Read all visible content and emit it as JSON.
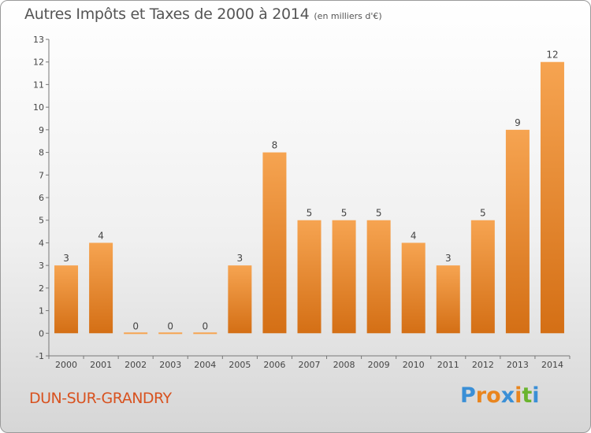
{
  "title": "Autres Impôts et Taxes de 2000 à 2014",
  "unit": "(en milliers d'€)",
  "commune": "DUN-SUR-GRANDRY",
  "logo": {
    "text": "Proxiti",
    "colors": [
      "#3a8fd6",
      "#e9851e",
      "#e9851e",
      "#3a8fd6",
      "#e9851e",
      "#6ab42e",
      "#3a8fd6"
    ]
  },
  "colors": {
    "bar_light": "#f6a451",
    "bar_dark": "#d46f15",
    "commune": "#d8521f"
  },
  "chart_data": {
    "type": "bar",
    "categories": [
      "2000",
      "2001",
      "2002",
      "2003",
      "2004",
      "2005",
      "2006",
      "2007",
      "2008",
      "2009",
      "2010",
      "2011",
      "2012",
      "2013",
      "2014"
    ],
    "values": [
      3,
      4,
      0,
      0,
      0,
      3,
      8,
      5,
      5,
      5,
      4,
      3,
      5,
      9,
      12
    ],
    "title": "Autres Impôts et Taxes de 2000 à 2014",
    "ylabel": "",
    "xlabel": "",
    "ylim": [
      -1,
      13
    ],
    "yticks": [
      -1,
      0,
      1,
      2,
      3,
      4,
      5,
      6,
      7,
      8,
      9,
      10,
      11,
      12,
      13
    ],
    "grid": false,
    "legend": "none"
  }
}
